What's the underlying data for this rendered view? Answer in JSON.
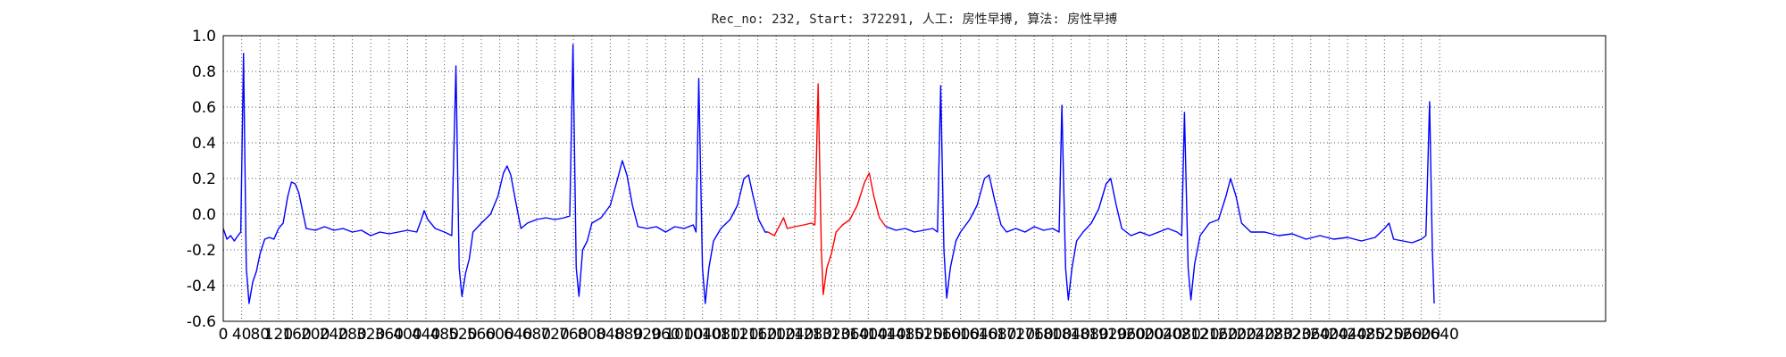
{
  "chart_data": {
    "type": "line",
    "title": "Rec_no: 232, Start: 372291, 人工: 房性早搏, 算法: 房性早搏",
    "xlim": [
      0,
      3000
    ],
    "xticks": [
      0,
      40,
      80,
      120,
      160,
      200,
      240,
      280,
      320,
      360,
      400,
      440,
      480,
      520,
      560,
      600,
      640,
      680,
      720,
      760,
      800,
      840,
      880,
      920,
      960,
      1000,
      1040,
      1080,
      1120,
      1160,
      1200,
      1240,
      1280,
      1320,
      1360,
      1400,
      1440,
      1480,
      1520,
      1560,
      1600,
      1640,
      1680,
      1720,
      1760,
      1800,
      1840,
      1880,
      1920,
      1960,
      2000,
      2040,
      2080,
      2120,
      2160,
      2200,
      2240,
      2280,
      2320,
      2360,
      2400,
      2440,
      2480,
      2520,
      2560,
      2600,
      2640
    ],
    "ylim": [
      -0.6,
      1
    ],
    "yticks": [
      {
        "value": 1,
        "label": "1.0"
      },
      0.8,
      0.6,
      0.4,
      0.2,
      {
        "value": 0,
        "label": "0.0"
      },
      -0.2,
      -0.4,
      -0.6
    ],
    "grid": true,
    "series": [
      {
        "color": "#0000ff",
        "x": [
          0,
          8,
          16,
          24,
          32,
          38,
          44,
          50,
          56,
          64,
          72,
          80,
          90,
          100,
          110,
          120,
          130,
          140,
          148,
          156,
          164,
          172,
          180,
          200,
          220,
          240,
          260,
          280,
          300,
          320,
          340,
          360,
          380,
          400,
          420,
          430,
          436,
          444,
          460,
          480,
          496,
          505,
          512,
          518,
          526,
          534,
          542,
          560,
          580,
          596,
          608,
          616,
          624,
          634,
          646,
          660,
          680,
          700,
          720,
          740,
          752,
          759,
          766,
          772,
          780,
          790,
          800,
          820,
          840,
          856,
          866,
          876,
          888,
          900,
          920,
          940,
          960,
          980,
          1000,
          1020,
          1026,
          1032,
          1040,
          1046,
          1054,
          1064,
          1080,
          1100,
          1116,
          1130,
          1140,
          1150,
          1162,
          1176,
          1182,
          1300,
          1438,
          1460,
          1480,
          1500,
          1520,
          1540,
          1550,
          1557,
          1564,
          1570,
          1578,
          1590,
          1600,
          1620,
          1636,
          1652,
          1662,
          1674,
          1688,
          1700,
          1720,
          1740,
          1760,
          1780,
          1800,
          1814,
          1820,
          1828,
          1834,
          1842,
          1852,
          1866,
          1884,
          1900,
          1916,
          1926,
          1938,
          1950,
          1970,
          1990,
          2010,
          2030,
          2050,
          2070,
          2080,
          2086,
          2094,
          2100,
          2108,
          2120,
          2140,
          2160,
          2176,
          2186,
          2198,
          2210,
          2230,
          2260,
          2290,
          2320,
          2350,
          2380,
          2410,
          2440,
          2470,
          2500,
          2520,
          2530,
          2540,
          2560,
          2580,
          2600,
          2610,
          2618,
          2624,
          2628
        ],
        "values": [
          -0.08,
          -0.14,
          -0.12,
          -0.15,
          -0.12,
          -0.1,
          0.9,
          -0.3,
          -0.5,
          -0.38,
          -0.32,
          -0.22,
          -0.14,
          -0.13,
          -0.14,
          -0.08,
          -0.05,
          0.1,
          0.18,
          0.17,
          0.12,
          0.02,
          -0.08,
          -0.09,
          -0.07,
          -0.09,
          -0.08,
          -0.1,
          -0.09,
          -0.12,
          -0.1,
          -0.11,
          -0.1,
          -0.09,
          -0.1,
          -0.03,
          0.02,
          -0.03,
          -0.08,
          -0.1,
          -0.12,
          0.83,
          -0.3,
          -0.46,
          -0.33,
          -0.25,
          -0.1,
          -0.05,
          0.0,
          0.1,
          0.23,
          0.27,
          0.22,
          0.08,
          -0.08,
          -0.05,
          -0.03,
          -0.02,
          -0.03,
          -0.02,
          -0.01,
          0.95,
          -0.3,
          -0.46,
          -0.2,
          -0.15,
          -0.05,
          -0.02,
          0.05,
          0.2,
          0.3,
          0.22,
          0.05,
          -0.07,
          -0.08,
          -0.07,
          -0.1,
          -0.07,
          -0.08,
          -0.06,
          -0.1,
          0.76,
          -0.3,
          -0.5,
          -0.3,
          -0.15,
          -0.08,
          -0.03,
          0.05,
          0.2,
          0.22,
          0.1,
          -0.03,
          -0.1,
          -0.1,
          null,
          -0.07,
          -0.09,
          -0.08,
          -0.1,
          -0.09,
          -0.08,
          -0.1,
          0.72,
          -0.2,
          -0.47,
          -0.3,
          -0.15,
          -0.1,
          -0.03,
          0.05,
          0.2,
          0.22,
          0.08,
          -0.06,
          -0.1,
          -0.08,
          -0.1,
          -0.07,
          -0.09,
          -0.08,
          -0.1,
          0.61,
          -0.3,
          -0.48,
          -0.3,
          -0.15,
          -0.1,
          -0.05,
          0.03,
          0.17,
          0.2,
          0.05,
          -0.08,
          -0.12,
          -0.1,
          -0.12,
          -0.1,
          -0.08,
          -0.1,
          -0.12,
          0.57,
          -0.3,
          -0.48,
          -0.28,
          -0.12,
          -0.05,
          -0.03,
          0.1,
          0.2,
          0.1,
          -0.05,
          -0.1,
          -0.1,
          -0.12,
          -0.11,
          -0.14,
          -0.12,
          -0.14,
          -0.13,
          -0.15,
          -0.13,
          -0.08,
          -0.05,
          -0.14,
          -0.15,
          -0.16,
          -0.14,
          -0.12,
          0.63,
          -0.2,
          -0.5
        ]
      },
      {
        "color": "#ff0000",
        "x": [
          1182,
          1196,
          1210,
          1216,
          1224,
          1240,
          1260,
          1276,
          1284,
          1291,
          1298,
          1302,
          1310,
          1320,
          1330,
          1344,
          1360,
          1376,
          1392,
          1402,
          1412,
          1424,
          1438
        ],
        "values": [
          -0.1,
          -0.12,
          -0.05,
          -0.02,
          -0.08,
          -0.07,
          -0.06,
          -0.05,
          -0.06,
          0.73,
          -0.2,
          -0.45,
          -0.3,
          -0.22,
          -0.1,
          -0.06,
          -0.03,
          0.05,
          0.18,
          0.23,
          0.1,
          -0.02,
          -0.07
        ]
      }
    ]
  }
}
